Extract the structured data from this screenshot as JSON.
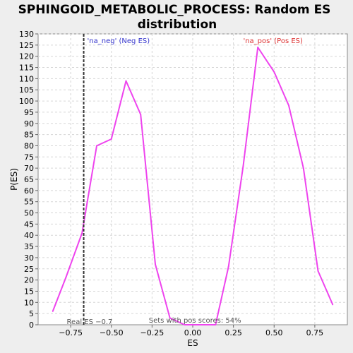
{
  "chart_data": {
    "type": "line",
    "title_line1": "SPHINGOID_METABOLIC_PROCESS: Random ES",
    "title_line2": "distribution",
    "xlabel": "ES",
    "ylabel": "P(ES)",
    "xlim": [
      -0.95,
      0.95
    ],
    "ylim": [
      0,
      130
    ],
    "x_ticks": [
      -0.75,
      -0.5,
      -0.25,
      0.0,
      0.25,
      0.5,
      0.75
    ],
    "x_tick_labels": [
      "−0.75",
      "−0.50",
      "−0.25",
      "0.00",
      "0.25",
      "0.50",
      "0.75"
    ],
    "y_ticks": [
      0,
      5,
      10,
      15,
      20,
      25,
      30,
      35,
      40,
      45,
      50,
      55,
      60,
      65,
      70,
      75,
      80,
      85,
      90,
      95,
      100,
      105,
      110,
      115,
      120,
      125,
      130
    ],
    "grid": true,
    "series": [
      {
        "color": "#ee44ee",
        "x": [
          -0.86,
          -0.78,
          -0.68,
          -0.59,
          -0.5,
          -0.41,
          -0.32,
          -0.23,
          -0.14,
          -0.05,
          0.05,
          0.14,
          0.22,
          0.31,
          0.4,
          0.5,
          0.59,
          0.68,
          0.77,
          0.86
        ],
        "y": [
          6,
          21,
          41,
          80,
          83,
          109,
          94,
          27,
          3,
          0,
          0,
          0,
          26,
          71,
          124,
          113,
          98,
          70,
          24,
          9
        ]
      }
    ],
    "real_es": {
      "x": -0.67,
      "label": "Real ES −0.7",
      "color": "#333333"
    },
    "annotations": {
      "neg_label": "'na_neg' (Neg ES)",
      "neg_color": "#3333cc",
      "pos_label": "'na_pos' (Pos ES)",
      "pos_color": "#dd3333",
      "pos_fraction_label": "Sets with pos scores: 54%"
    }
  }
}
